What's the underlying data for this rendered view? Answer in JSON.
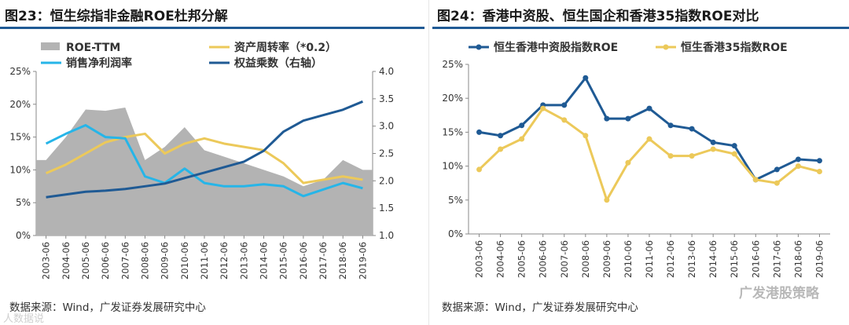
{
  "charts": [
    {
      "title": "图23：恒生综指非金融ROE杜邦分解",
      "source": "数据来源：Wind，广发证券发展研究中心",
      "chart_data": {
        "type": "area+line",
        "categories": [
          "2003-06",
          "2004-06",
          "2005-06",
          "2006-06",
          "2007-06",
          "2008-06",
          "2009-06",
          "2010-06",
          "2011-06",
          "2012-06",
          "2013-06",
          "2014-06",
          "2015-06",
          "2016-06",
          "2017-06",
          "2018-06",
          "2019-06"
        ],
        "left_axis": {
          "ticks": [
            "0%",
            "5%",
            "10%",
            "15%",
            "20%",
            "25%"
          ],
          "ylim": [
            0,
            25
          ]
        },
        "right_axis": {
          "ticks": [
            "1.0",
            "1.5",
            "2.0",
            "2.5",
            "3.0",
            "3.5",
            "4.0"
          ],
          "ylim": [
            1.0,
            4.0
          ]
        },
        "series": [
          {
            "name": "ROE-TTM",
            "kind": "area",
            "axis": "left",
            "color": "#b3b3b3",
            "values": [
              11.5,
              15.0,
              19.2,
              19.0,
              19.5,
              11.5,
              13.5,
              16.5,
              13.0,
              12.0,
              11.0,
              10.0,
              9.0,
              7.5,
              8.5,
              11.5,
              10.0
            ]
          },
          {
            "name": "资产周转率（*0.2）",
            "kind": "line",
            "axis": "left",
            "color": "#ecc95a",
            "values": [
              9.5,
              10.8,
              12.5,
              14.2,
              15.0,
              15.5,
              12.5,
              14.0,
              14.8,
              14.0,
              13.5,
              13.0,
              11.0,
              8.0,
              8.5,
              9.0,
              8.5
            ]
          },
          {
            "name": "销售净利润率",
            "kind": "line",
            "axis": "left",
            "color": "#26b5e8",
            "values": [
              14.0,
              15.5,
              16.8,
              15.0,
              14.8,
              9.0,
              8.0,
              10.2,
              8.0,
              7.5,
              7.5,
              7.8,
              7.5,
              6.0,
              7.0,
              8.0,
              7.2
            ]
          },
          {
            "name": "权益乘数（右轴）",
            "kind": "line",
            "axis": "right",
            "color": "#1f5a94",
            "values": [
              1.7,
              1.75,
              1.8,
              1.82,
              1.85,
              1.9,
              1.95,
              2.05,
              2.15,
              2.25,
              2.35,
              2.55,
              2.9,
              3.1,
              3.2,
              3.3,
              3.45
            ]
          }
        ]
      }
    },
    {
      "title": "图24：香港中资股、恒生国企和香港35指数ROE对比",
      "source": "数据来源：Wind，广发证券发展研究中心",
      "chart_data": {
        "type": "line",
        "categories": [
          "2003-06",
          "2004-06",
          "2005-06",
          "2006-06",
          "2007-06",
          "2008-06",
          "2009-06",
          "2010-06",
          "2011-06",
          "2012-06",
          "2013-06",
          "2014-06",
          "2015-06",
          "2016-06",
          "2017-06",
          "2018-06",
          "2019-06"
        ],
        "left_axis": {
          "ticks": [
            "0%",
            "5%",
            "10%",
            "15%",
            "20%",
            "25%"
          ],
          "ylim": [
            0,
            25
          ]
        },
        "series": [
          {
            "name": "恒生香港中资股指数ROE",
            "color": "#1f5a94",
            "marker": true,
            "values": [
              15.0,
              14.5,
              16.0,
              19.0,
              19.0,
              23.0,
              17.0,
              17.0,
              18.5,
              16.0,
              15.5,
              13.5,
              13.0,
              8.0,
              9.5,
              11.0,
              10.8
            ]
          },
          {
            "name": "恒生香港35指数ROE",
            "color": "#ecc95a",
            "marker": true,
            "values": [
              9.5,
              12.5,
              14.0,
              18.5,
              16.8,
              14.5,
              5.0,
              10.5,
              14.0,
              11.5,
              11.5,
              12.5,
              11.8,
              8.0,
              7.5,
              10.0,
              9.2
            ]
          }
        ]
      }
    }
  ],
  "watermarks": {
    "right": "广发港股策略",
    "left": "人数据说"
  }
}
